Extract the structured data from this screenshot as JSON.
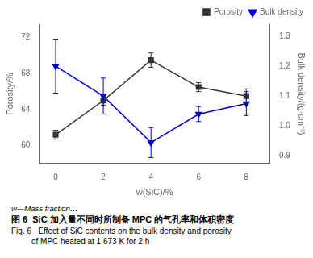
{
  "chart_data": {
    "type": "line",
    "x": [
      0,
      2,
      4,
      6,
      8
    ],
    "xlabel": "w(SiC)/%",
    "ylabel": "Porosity/%",
    "y2label": "Bulk density/(g·cm⁻³)",
    "xlim": [
      -0.7,
      9.0
    ],
    "xticks": [
      0,
      2,
      4,
      6,
      8
    ],
    "ylim": [
      58,
      73.5
    ],
    "yticks": [
      60,
      64,
      68,
      72
    ],
    "y2lim": [
      0.875,
      1.34
    ],
    "y2ticks": [
      0.9,
      {
        "value": 1,
        "label": "1.0"
      },
      1.1,
      1.2,
      1.3
    ],
    "grid": false,
    "legend": "upper right",
    "series": [
      {
        "name": "Porosity",
        "color": "#333333",
        "marker": "square",
        "axis": "y",
        "values": [
          61.2,
          65.0,
          69.5,
          66.5,
          65.5
        ],
        "errors": [
          0.5,
          0.5,
          0.8,
          0.5,
          0.8
        ]
      },
      {
        "name": "Bulk density",
        "color": "#0000cc",
        "marker": "triangle_down",
        "axis": "y2",
        "values": [
          1.2,
          1.1,
          0.945,
          1.04,
          1.075
        ],
        "errors": [
          0.09,
          0.06,
          0.05,
          0.025,
          0.04
        ]
      }
    ],
    "annotations": [
      "w—Mass fraction…",
      "图 6  SiC 加入量不同时所制备 MPC 的气孔率和体积密度",
      "Fig. 6   Effect of SiC contents on the bulk density and porosity",
      "         of MPC heated at 1 673 K for 2 h"
    ]
  }
}
